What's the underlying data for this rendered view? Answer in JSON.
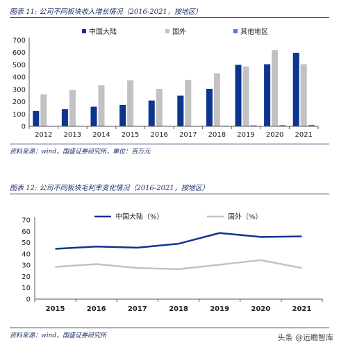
{
  "figure1": {
    "title": "图表 11:  公司不同板块收入增长情况（2016-2021，按地区）",
    "source": "资料来源：wind，国盛证券研究所，单位：百万元"
  },
  "figure2": {
    "title": "图表 12:  公司不同板块毛利率变化情况（2016-2021，按地区）",
    "source": "资料来源：wind，国盛证券研究所"
  },
  "watermark": "头条 @远瞻智库",
  "chart_data": [
    {
      "type": "bar",
      "categories": [
        "2012",
        "2013",
        "2014",
        "2015",
        "2016",
        "2017",
        "2018",
        "2019",
        "2020",
        "2021"
      ],
      "series": [
        {
          "name": "中国大陆",
          "color": "#0b3590",
          "values": [
            125,
            140,
            160,
            175,
            210,
            250,
            305,
            500,
            505,
            598
          ]
        },
        {
          "name": "国外",
          "color": "#c2c2c2",
          "values": [
            260,
            295,
            335,
            375,
            305,
            378,
            432,
            487,
            620,
            505
          ]
        },
        {
          "name": "其他地区",
          "color": "#4a7fd0",
          "values": [
            3,
            3,
            3,
            3,
            3,
            3,
            5,
            8,
            10,
            12
          ]
        }
      ],
      "yticks": [
        "0",
        "100",
        "200",
        "300",
        "400",
        "500",
        "600",
        "700"
      ],
      "ylim": [
        0,
        700
      ],
      "legend_position": "top"
    },
    {
      "type": "line",
      "categories": [
        "2015",
        "2016",
        "2017",
        "2018",
        "2019",
        "2020",
        "2021"
      ],
      "series": [
        {
          "name": "中国大陆（%）",
          "color": "#0b3590",
          "values": [
            44.5,
            46.5,
            45.5,
            49,
            58.5,
            55,
            55.5
          ]
        },
        {
          "name": "国外（%）",
          "color": "#c2c2c2",
          "values": [
            28.5,
            31,
            27.5,
            26.5,
            30.5,
            34.5,
            27.5
          ]
        }
      ],
      "yticks": [
        "0",
        "10",
        "20",
        "30",
        "40",
        "50",
        "60",
        "70"
      ],
      "ylim": [
        0,
        70
      ],
      "legend_position": "top"
    }
  ]
}
